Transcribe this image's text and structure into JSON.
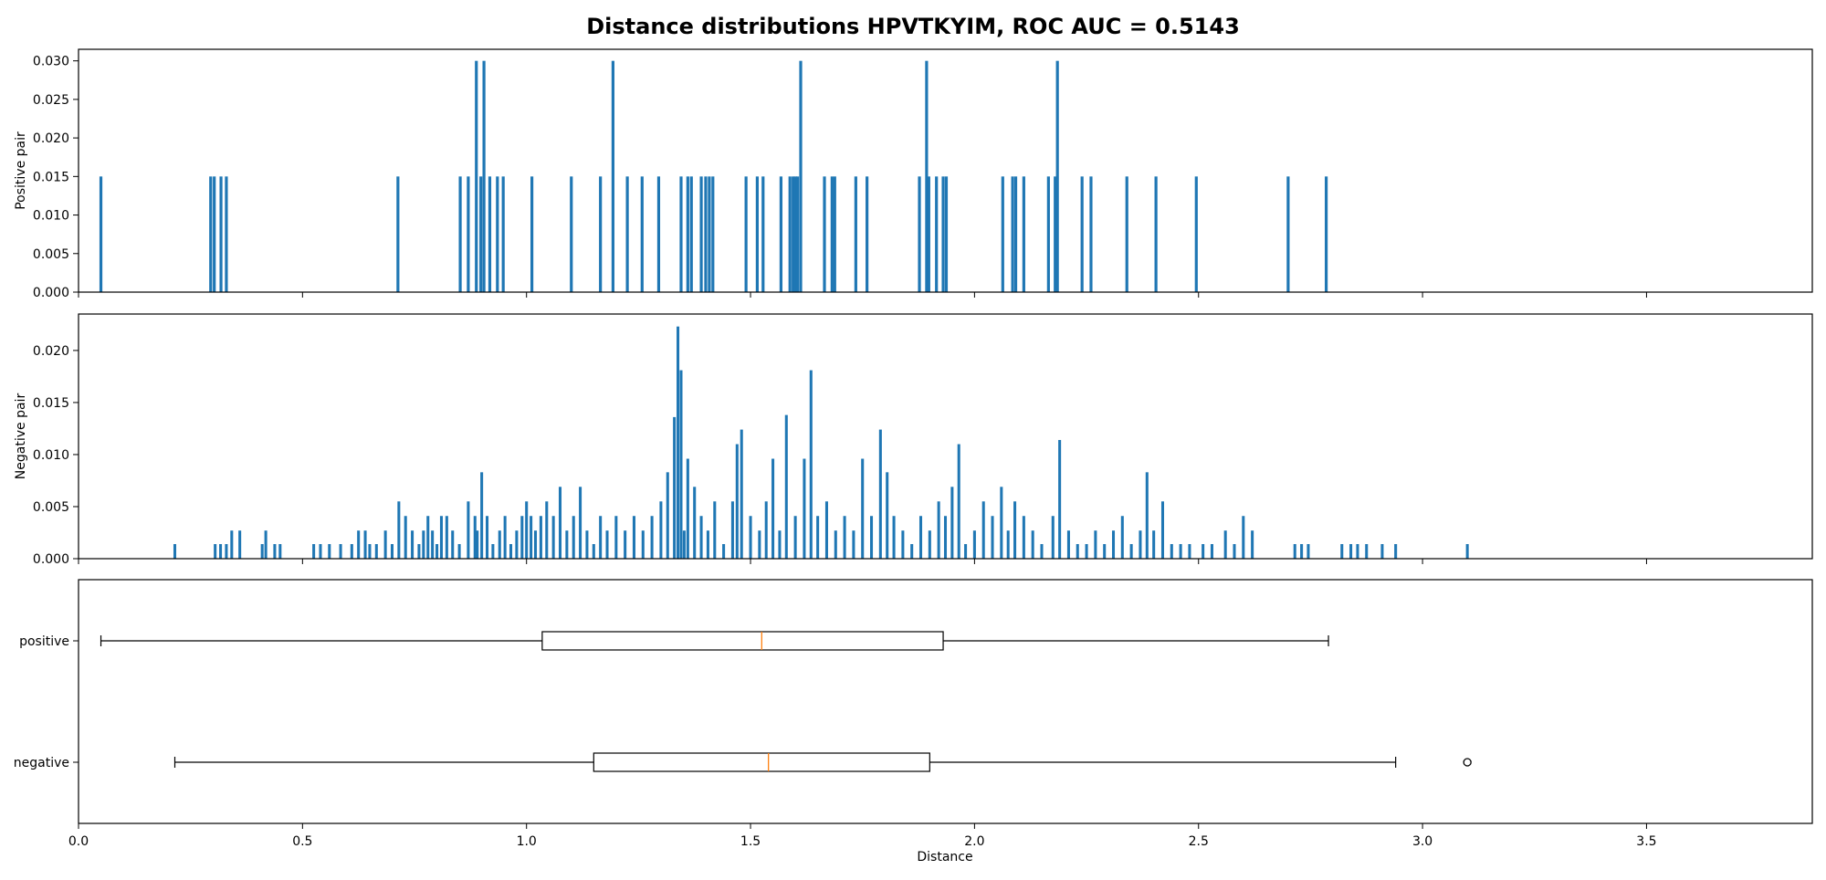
{
  "chart_data": {
    "title": "Distance distributions HPVTKYIM, ROC AUC = 0.5143",
    "xlabel": "Distance",
    "xlim": [
      0,
      3.87
    ],
    "x_ticks": [
      "0.0",
      "0.5",
      "1.0",
      "1.5",
      "2.0",
      "2.5",
      "3.0",
      "3.5"
    ],
    "x_tick_values": [
      0,
      0.5,
      1.0,
      1.5,
      2.0,
      2.5,
      3.0,
      3.5
    ],
    "panels": [
      {
        "type": "bar",
        "ylabel": "Positive pair",
        "ylim": [
          0,
          0.0315
        ],
        "y_ticks": [
          "0.000",
          "0.005",
          "0.010",
          "0.015",
          "0.020",
          "0.025",
          "0.030"
        ],
        "y_tick_values": [
          0,
          0.005,
          0.01,
          0.015,
          0.02,
          0.025,
          0.03
        ],
        "color": "#1f77b4",
        "bin_width": 0.0065,
        "x": [
          0.05,
          0.295,
          0.303,
          0.318,
          0.33,
          0.713,
          0.852,
          0.87,
          0.888,
          0.898,
          0.905,
          0.918,
          0.935,
          0.948,
          1.012,
          1.1,
          1.165,
          1.193,
          1.225,
          1.258,
          1.295,
          1.345,
          1.36,
          1.368,
          1.39,
          1.4,
          1.408,
          1.416,
          1.49,
          1.515,
          1.528,
          1.568,
          1.588,
          1.595,
          1.6,
          1.605,
          1.612,
          1.665,
          1.682,
          1.688,
          1.735,
          1.76,
          1.877,
          1.893,
          1.898,
          1.915,
          1.93,
          1.937,
          2.063,
          2.085,
          2.092,
          2.11,
          2.165,
          2.18,
          2.185,
          2.24,
          2.26,
          2.34,
          2.405,
          2.495,
          2.7,
          2.785
        ],
        "y": [
          0.015,
          0.015,
          0.015,
          0.015,
          0.015,
          0.015,
          0.015,
          0.015,
          0.03,
          0.015,
          0.03,
          0.015,
          0.015,
          0.015,
          0.015,
          0.015,
          0.015,
          0.03,
          0.015,
          0.015,
          0.015,
          0.015,
          0.015,
          0.015,
          0.015,
          0.015,
          0.015,
          0.015,
          0.015,
          0.015,
          0.015,
          0.015,
          0.015,
          0.015,
          0.015,
          0.015,
          0.03,
          0.015,
          0.015,
          0.015,
          0.015,
          0.015,
          0.015,
          0.03,
          0.015,
          0.015,
          0.015,
          0.015,
          0.015,
          0.015,
          0.015,
          0.015,
          0.015,
          0.015,
          0.03,
          0.015,
          0.015,
          0.015,
          0.015,
          0.015,
          0.015,
          0.015
        ]
      },
      {
        "type": "bar",
        "ylabel": "Negative pair",
        "ylim": [
          0,
          0.0235
        ],
        "y_ticks": [
          "0.000",
          "0.005",
          "0.010",
          "0.015",
          "0.020"
        ],
        "y_tick_values": [
          0,
          0.005,
          0.01,
          0.015,
          0.02
        ],
        "color": "#1f77b4",
        "bin_width": 0.0062,
        "x": [
          0.215,
          0.305,
          0.317,
          0.33,
          0.342,
          0.36,
          0.41,
          0.418,
          0.438,
          0.45,
          0.525,
          0.54,
          0.56,
          0.585,
          0.61,
          0.625,
          0.64,
          0.65,
          0.665,
          0.685,
          0.7,
          0.715,
          0.73,
          0.745,
          0.76,
          0.77,
          0.78,
          0.79,
          0.8,
          0.81,
          0.822,
          0.835,
          0.85,
          0.87,
          0.885,
          0.89,
          0.9,
          0.912,
          0.925,
          0.94,
          0.952,
          0.965,
          0.978,
          0.99,
          1.0,
          1.01,
          1.02,
          1.032,
          1.045,
          1.06,
          1.075,
          1.09,
          1.105,
          1.12,
          1.135,
          1.15,
          1.165,
          1.18,
          1.2,
          1.22,
          1.24,
          1.26,
          1.28,
          1.3,
          1.315,
          1.33,
          1.338,
          1.345,
          1.352,
          1.36,
          1.375,
          1.39,
          1.405,
          1.42,
          1.44,
          1.46,
          1.47,
          1.48,
          1.5,
          1.52,
          1.535,
          1.55,
          1.565,
          1.58,
          1.6,
          1.62,
          1.635,
          1.65,
          1.67,
          1.69,
          1.71,
          1.73,
          1.75,
          1.77,
          1.79,
          1.805,
          1.82,
          1.84,
          1.86,
          1.88,
          1.9,
          1.92,
          1.935,
          1.95,
          1.965,
          1.98,
          2.0,
          2.02,
          2.04,
          2.06,
          2.075,
          2.09,
          2.11,
          2.13,
          2.15,
          2.175,
          2.19,
          2.21,
          2.23,
          2.25,
          2.27,
          2.29,
          2.31,
          2.33,
          2.35,
          2.37,
          2.385,
          2.4,
          2.42,
          2.44,
          2.46,
          2.48,
          2.51,
          2.53,
          2.56,
          2.58,
          2.6,
          2.62,
          2.715,
          2.73,
          2.745,
          2.82,
          2.84,
          2.855,
          2.875,
          2.91,
          2.94,
          3.1
        ],
        "y": [
          0.0014,
          0.0014,
          0.0014,
          0.0014,
          0.0027,
          0.0027,
          0.0014,
          0.0027,
          0.0014,
          0.0014,
          0.0014,
          0.0014,
          0.0014,
          0.0014,
          0.0014,
          0.0027,
          0.0027,
          0.0014,
          0.0014,
          0.0027,
          0.0014,
          0.0055,
          0.0041,
          0.0027,
          0.0014,
          0.0027,
          0.0041,
          0.0027,
          0.0014,
          0.0041,
          0.0041,
          0.0027,
          0.0014,
          0.0055,
          0.0041,
          0.0027,
          0.0083,
          0.0041,
          0.0014,
          0.0027,
          0.0041,
          0.0014,
          0.0027,
          0.0041,
          0.0055,
          0.0041,
          0.0027,
          0.0041,
          0.0055,
          0.0041,
          0.0069,
          0.0027,
          0.0041,
          0.0069,
          0.0027,
          0.0014,
          0.0041,
          0.0027,
          0.0041,
          0.0027,
          0.0041,
          0.0027,
          0.0041,
          0.0055,
          0.0083,
          0.0136,
          0.0223,
          0.0181,
          0.0027,
          0.0096,
          0.0069,
          0.0041,
          0.0027,
          0.0055,
          0.0014,
          0.0055,
          0.011,
          0.0124,
          0.0041,
          0.0027,
          0.0055,
          0.0096,
          0.0027,
          0.0138,
          0.0041,
          0.0096,
          0.0181,
          0.0041,
          0.0055,
          0.0027,
          0.0041,
          0.0027,
          0.0096,
          0.0041,
          0.0124,
          0.0083,
          0.0041,
          0.0027,
          0.0014,
          0.0041,
          0.0027,
          0.0055,
          0.0041,
          0.0069,
          0.011,
          0.0014,
          0.0027,
          0.0055,
          0.0041,
          0.0069,
          0.0027,
          0.0055,
          0.0041,
          0.0027,
          0.0014,
          0.0041,
          0.0114,
          0.0027,
          0.0014,
          0.0014,
          0.0027,
          0.0014,
          0.0027,
          0.0041,
          0.0014,
          0.0027,
          0.0083,
          0.0027,
          0.0055,
          0.0014,
          0.0014,
          0.0014,
          0.0014,
          0.0014,
          0.0027,
          0.0014,
          0.0041,
          0.0027,
          0.0014,
          0.0014,
          0.0014,
          0.0014,
          0.0014,
          0.0014,
          0.0014,
          0.0014,
          0.0014,
          0.0014
        ]
      },
      {
        "type": "box",
        "orientation": "horizontal",
        "categories": [
          "positive",
          "negative"
        ],
        "series": [
          {
            "name": "positive",
            "whisker_low": 0.05,
            "q1": 1.035,
            "median": 1.525,
            "q3": 1.93,
            "whisker_high": 2.79,
            "outliers": []
          },
          {
            "name": "negative",
            "whisker_low": 0.215,
            "q1": 1.15,
            "median": 1.54,
            "q3": 1.9,
            "whisker_high": 2.94,
            "outliers": [
              3.1
            ]
          }
        ],
        "median_color": "#ff7f0e",
        "box_color": "#000000"
      }
    ]
  }
}
